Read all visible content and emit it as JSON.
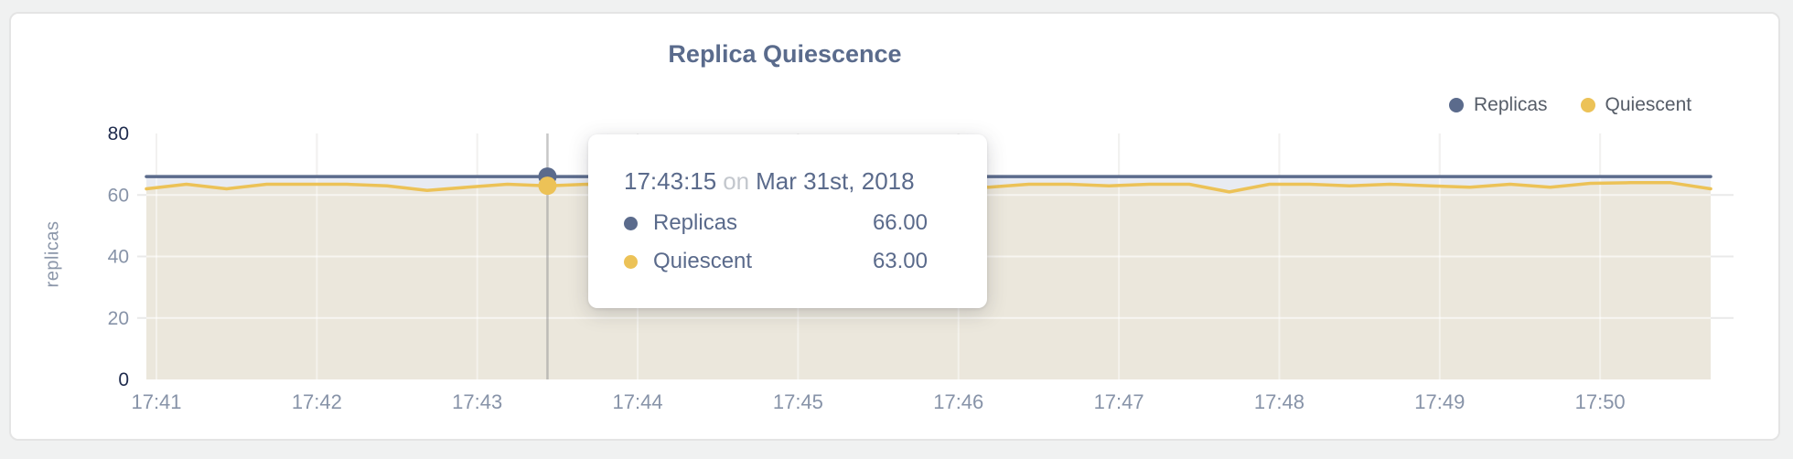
{
  "chart_data": {
    "type": "line",
    "title": "Replica Quiescence",
    "ylabel": "replicas",
    "ylim": [
      0,
      80
    ],
    "yticks": [
      0,
      20,
      40,
      60,
      80
    ],
    "ytick_strong": [
      0,
      80
    ],
    "xtick_labels": [
      "17:41",
      "17:42",
      "17:43",
      "17:44",
      "17:45",
      "17:46",
      "17:47",
      "17:48",
      "17:49",
      "17:50"
    ],
    "grid": true,
    "legend_position": "top-right",
    "x_times": [
      "17:40:45",
      "17:41:00",
      "17:41:15",
      "17:41:30",
      "17:41:45",
      "17:42:00",
      "17:42:15",
      "17:42:30",
      "17:42:45",
      "17:43:00",
      "17:43:15",
      "17:43:30",
      "17:43:45",
      "17:44:00",
      "17:44:15",
      "17:44:30",
      "17:44:45",
      "17:45:00",
      "17:45:15",
      "17:45:30",
      "17:45:45",
      "17:46:00",
      "17:46:15",
      "17:46:30",
      "17:46:45",
      "17:47:00",
      "17:47:15",
      "17:47:30",
      "17:47:45",
      "17:48:00",
      "17:48:15",
      "17:48:30",
      "17:48:45",
      "17:49:00",
      "17:49:15",
      "17:49:30",
      "17:49:45",
      "17:50:00",
      "17:50:15",
      "17:50:30"
    ],
    "series": [
      {
        "name": "Replicas",
        "color": "#5b6b8c",
        "fill": "#e8ebf2",
        "values": [
          66,
          66,
          66,
          66,
          66,
          66,
          66,
          66,
          66,
          66,
          66,
          66,
          66,
          66,
          66,
          66,
          66,
          66,
          66,
          66,
          66,
          66,
          66,
          66,
          66,
          66,
          66,
          66,
          66,
          66,
          66,
          66,
          66,
          66,
          66,
          66,
          66,
          66,
          66,
          66
        ]
      },
      {
        "name": "Quiescent",
        "color": "#ecc257",
        "fill": "#ebe7dc",
        "values": [
          62,
          63.5,
          62,
          63.5,
          63.5,
          63.5,
          63,
          61.5,
          62.5,
          63.5,
          63,
          63.5,
          63,
          63.5,
          63,
          63.5,
          62,
          63.5,
          63,
          63.5,
          63,
          62.5,
          63.5,
          63.5,
          63,
          63.5,
          63.5,
          61,
          63.5,
          63.5,
          63,
          63.5,
          63,
          62.5,
          63.5,
          62.5,
          63.8,
          64,
          64,
          62
        ]
      }
    ],
    "hovered_point": {
      "index": 10,
      "time": "17:43:15",
      "date": "Mar 31st, 2018"
    }
  },
  "tooltip": {
    "time": "17:43:15",
    "conjunction": "on",
    "date": "Mar 31st, 2018",
    "rows": [
      {
        "label": "Replicas",
        "value": "66.00",
        "color": "#5b6b8c"
      },
      {
        "label": "Quiescent",
        "value": "63.00",
        "color": "#ecc257"
      }
    ]
  },
  "colors": {
    "title": "#5a6b8c",
    "axis_label": "#8793a8",
    "axis_label_strong": "#1f2b4d",
    "grid_line": "#e7e6e4",
    "hover_line": "#8f8f8f",
    "card_bg": "#ffffff",
    "page_bg": "#f0f1f1"
  }
}
